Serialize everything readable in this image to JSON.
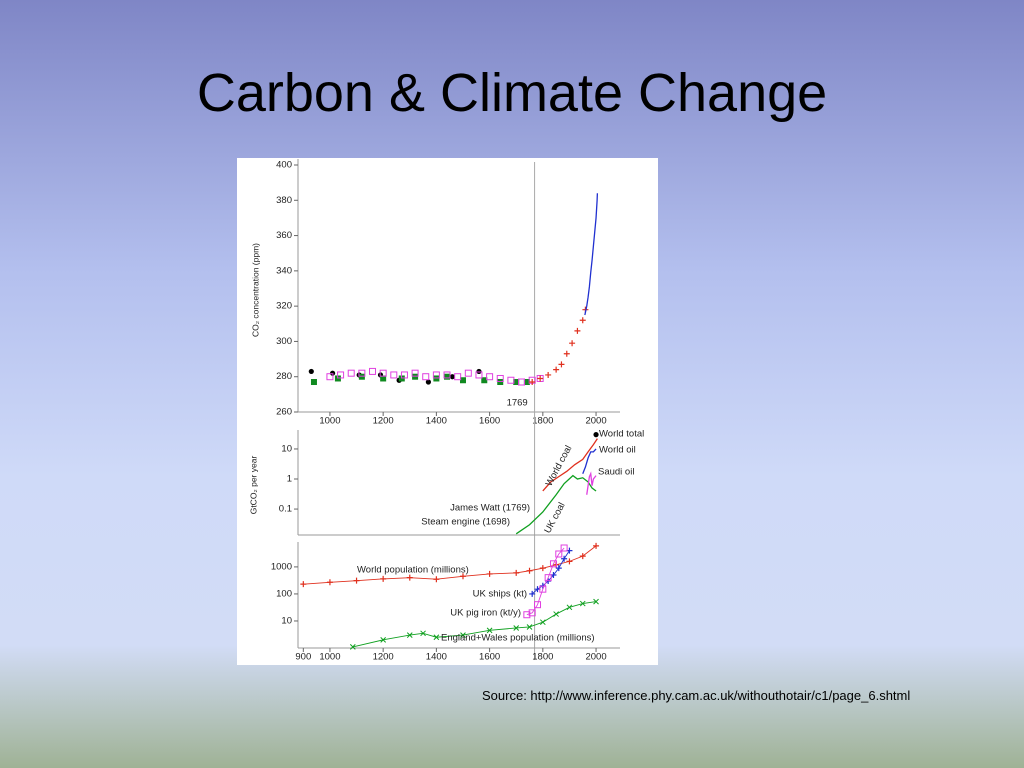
{
  "title": "Carbon & Climate Change",
  "source": "Source: http://www.inference.phy.cam.ac.uk/withouthotair/c1/page_6.shtml",
  "chart_data": [
    {
      "type": "scatter",
      "ylabel": "CO₂ concentration (ppm)",
      "xlim": [
        880,
        2090
      ],
      "ylim": [
        260,
        400
      ],
      "xticks": [
        1000,
        1200,
        1400,
        1600,
        1800,
        2000
      ],
      "yticks": [
        260,
        280,
        300,
        320,
        340,
        360,
        380,
        400
      ],
      "vline": 1769,
      "series": [
        {
          "color": "#000000",
          "marker": "dot",
          "x": [
            930,
            1010,
            1110,
            1190,
            1260,
            1370,
            1460,
            1560
          ],
          "values": [
            283,
            282,
            281,
            281,
            278,
            277,
            280,
            283
          ]
        },
        {
          "color": "#108a20",
          "marker": "square",
          "x": [
            940,
            1030,
            1120,
            1200,
            1270,
            1320,
            1400,
            1440,
            1500,
            1580,
            1640,
            1700,
            1740
          ],
          "values": [
            277,
            279,
            280,
            279,
            279,
            280,
            279,
            280,
            278,
            278,
            277,
            277,
            277
          ]
        },
        {
          "color": "#e040e0",
          "marker": "open-square",
          "x": [
            1000,
            1040,
            1080,
            1120,
            1160,
            1200,
            1240,
            1280,
            1320,
            1360,
            1400,
            1440,
            1480,
            1520,
            1560,
            1600,
            1640,
            1680,
            1720,
            1760,
            1790
          ],
          "values": [
            280,
            281,
            282,
            282,
            283,
            282,
            281,
            281,
            282,
            280,
            281,
            281,
            280,
            282,
            281,
            280,
            279,
            278,
            277,
            278,
            279
          ]
        },
        {
          "color": "#e0301e",
          "marker": "plus",
          "x": [
            1760,
            1790,
            1820,
            1850,
            1870,
            1890,
            1910,
            1930,
            1950,
            1960
          ],
          "values": [
            277,
            279,
            281,
            284,
            287,
            293,
            299,
            306,
            312,
            318
          ]
        },
        {
          "color": "#2030d0",
          "marker": "line",
          "x": [
            1958,
            1965,
            1970,
            1975,
            1980,
            1985,
            1990,
            1995,
            2000,
            2004,
            2005
          ],
          "values": [
            315,
            320,
            325,
            331,
            339,
            346,
            354,
            362,
            370,
            380,
            384
          ]
        }
      ]
    },
    {
      "type": "line",
      "ylabel": "GtCO₂ per year",
      "yscale": "log",
      "xlim": [
        880,
        2090
      ],
      "ylim": [
        0.0137,
        27
      ],
      "yticks": [
        0.1,
        1,
        10
      ],
      "annotations": [
        "World total",
        "World oil",
        "Saudi oil",
        "World coal",
        "UK coal",
        "James Watt (1769)",
        "Steam engine (1698)"
      ],
      "series": [
        {
          "color": "#e0301e",
          "marker": "line",
          "x": [
            1800,
            1830,
            1860,
            1890,
            1920,
            1950,
            1970,
            1990,
            2005
          ],
          "values": [
            0.4,
            0.8,
            1.2,
            1.8,
            3,
            4.5,
            8,
            14,
            22
          ]
        },
        {
          "color": "#10a020",
          "marker": "line",
          "x": [
            1700,
            1750,
            1800,
            1850,
            1880,
            1913,
            1930,
            1950,
            1970,
            1985,
            2000
          ],
          "values": [
            0.015,
            0.03,
            0.08,
            0.3,
            0.7,
            1.3,
            1.0,
            1.1,
            0.8,
            0.5,
            0.4
          ]
        },
        {
          "color": "#2030d0",
          "marker": "line",
          "x": [
            1950,
            1960,
            1970,
            1980,
            1990,
            2000
          ],
          "values": [
            1.5,
            2.5,
            5,
            8,
            8,
            10
          ]
        },
        {
          "color": "#e040e0",
          "marker": "line",
          "x": [
            1965,
            1975,
            1980,
            1985,
            1990,
            2000
          ],
          "values": [
            0.3,
            1.2,
            1.5,
            0.6,
            1.0,
            1.3
          ]
        },
        {
          "color": "#000000",
          "marker": "dot",
          "x": [
            2000
          ],
          "values": [
            30
          ]
        }
      ]
    },
    {
      "type": "line",
      "yscale": "log",
      "xlim": [
        880,
        2090
      ],
      "ylim": [
        1,
        5000
      ],
      "xticks": [
        900,
        1000,
        1200,
        1400,
        1600,
        1800,
        2000
      ],
      "yticks": [
        10,
        100,
        1000
      ],
      "annotations": [
        "World population (millions)",
        "UK ships (kt)",
        "UK pig iron (kt/y)",
        "England+Wales population (millions)"
      ],
      "series": [
        {
          "color": "#e0301e",
          "marker": "plus",
          "x": [
            900,
            1000,
            1100,
            1200,
            1300,
            1400,
            1500,
            1600,
            1700,
            1750,
            1800,
            1850,
            1900,
            1950,
            2000
          ],
          "values": [
            230,
            270,
            310,
            360,
            400,
            350,
            450,
            550,
            600,
            720,
            900,
            1200,
            1600,
            2500,
            6000
          ]
        },
        {
          "color": "#2030d0",
          "marker": "plus",
          "x": [
            1760,
            1780,
            1800,
            1820,
            1840,
            1860,
            1880,
            1900
          ],
          "values": [
            100,
            150,
            200,
            300,
            500,
            900,
            2000,
            4000
          ]
        },
        {
          "color": "#e040e0",
          "marker": "open-square",
          "x": [
            1740,
            1760,
            1780,
            1800,
            1820,
            1840,
            1860,
            1880
          ],
          "values": [
            17,
            20,
            40,
            150,
            400,
            1300,
            3000,
            5000
          ]
        },
        {
          "color": "#10a020",
          "marker": "cross",
          "x": [
            1086,
            1200,
            1300,
            1350,
            1400,
            1500,
            1600,
            1700,
            1750,
            1800,
            1850,
            1900,
            1950,
            2000
          ],
          "values": [
            1.1,
            2,
            3,
            3.5,
            2.5,
            3,
            4.5,
            5.5,
            6,
            9,
            18,
            32,
            44,
            52
          ]
        }
      ]
    }
  ]
}
